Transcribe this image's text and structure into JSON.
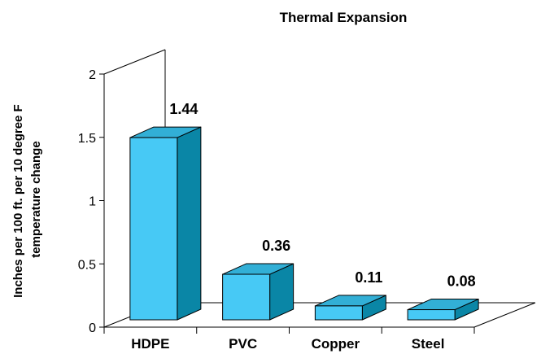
{
  "chart_data": {
    "type": "bar",
    "title": "Thermal Expansion",
    "ylabel_lines": [
      "Inches per 100 ft. per 10 degree F",
      "temperature change"
    ],
    "xlabel": "",
    "categories": [
      "HDPE",
      "PVC",
      "Copper",
      "Steel"
    ],
    "values": [
      1.44,
      0.36,
      0.11,
      0.08
    ],
    "data_labels": [
      "1.44",
      "0.36",
      "0.11",
      "0.08"
    ],
    "ylim": [
      0,
      2
    ],
    "yticks": [
      0,
      0.5,
      1,
      1.5,
      2
    ],
    "ytick_labels": [
      "0",
      "0.5",
      "1",
      "1.5",
      "2"
    ],
    "style": "3d-column",
    "grid": false,
    "legend": "none",
    "colors": {
      "front": "#47C9F5",
      "top": "#32AFD6",
      "side": "#0A86A6",
      "edge": "#000000"
    }
  }
}
